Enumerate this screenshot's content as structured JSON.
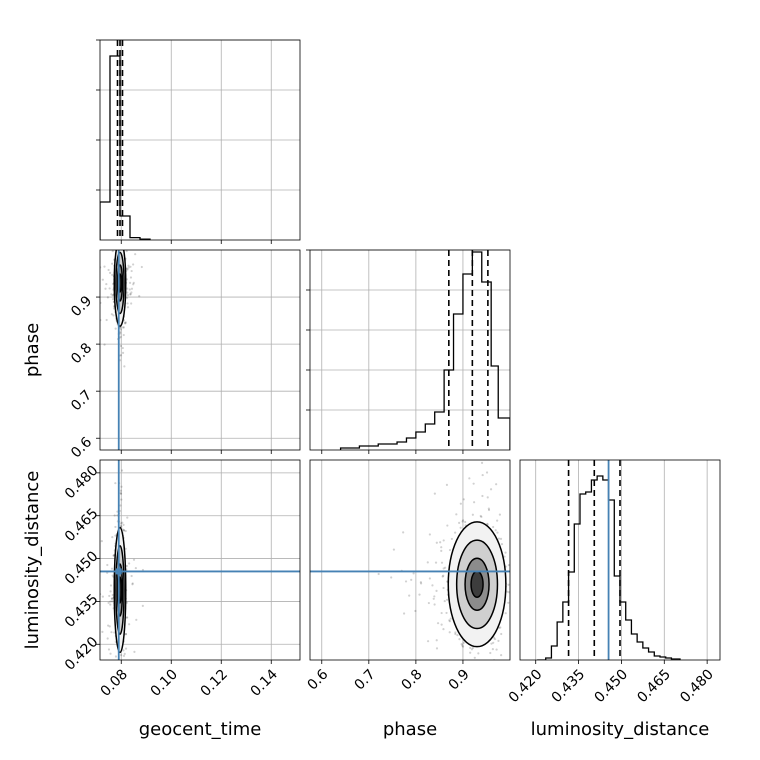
{
  "chart_data": [
    {
      "type": "histogram",
      "panel": "geocent_time-hist",
      "xlim": [
        0.0715,
        0.1515
      ],
      "ylim": [
        0,
        1.0
      ],
      "xticks": [
        0.08,
        0.1,
        0.12,
        0.14
      ],
      "yticks_unlabeled": [
        0.25,
        0.5,
        0.75,
        1.0
      ],
      "bins": [
        0.0715,
        0.0755,
        0.0795,
        0.0835,
        0.0875,
        0.0915
      ],
      "counts": [
        0.19,
        0.92,
        0.12,
        0.012,
        0.004
      ],
      "quantiles": [
        0.0785,
        0.0795,
        0.0805
      ],
      "grid": true
    },
    {
      "type": "scatter-contour",
      "panel": "geocent_time-vs-phase",
      "xlim": [
        0.0715,
        0.1515
      ],
      "ylim": [
        0.575,
        1.0
      ],
      "xticks": [
        0.08,
        0.1,
        0.12,
        0.14
      ],
      "yticks": [
        0.6,
        0.7,
        0.8,
        0.9
      ],
      "ylabel": "phase",
      "truth": {
        "x": 0.079
      },
      "peak": {
        "x": 0.0795,
        "y": 0.93
      },
      "grid": true
    },
    {
      "type": "histogram",
      "panel": "phase-hist",
      "xlim": [
        0.575,
        1.0
      ],
      "ylim": [
        0,
        1.0
      ],
      "xticks": [
        0.6,
        0.7,
        0.8,
        0.9
      ],
      "yticks_unlabeled": [
        0.2,
        0.4,
        0.6,
        0.8,
        1.0
      ],
      "bins": [
        0.64,
        0.68,
        0.72,
        0.76,
        0.78,
        0.8,
        0.82,
        0.84,
        0.86,
        0.88,
        0.9,
        0.92,
        0.94,
        0.96,
        0.975,
        1.0
      ],
      "counts": [
        0.01,
        0.02,
        0.03,
        0.04,
        0.06,
        0.09,
        0.13,
        0.19,
        0.4,
        0.68,
        0.88,
        0.99,
        0.84,
        0.42,
        0.16
      ],
      "quantiles": [
        0.87,
        0.92,
        0.953
      ],
      "grid": true
    },
    {
      "type": "scatter-contour",
      "panel": "geocent_time-vs-luminosity_distance",
      "xlim": [
        0.0715,
        0.1515
      ],
      "ylim": [
        0.4145,
        0.4845
      ],
      "xticks": [
        0.08,
        0.1,
        0.12,
        0.14
      ],
      "xtick_labels": [
        "0.08",
        "0.10",
        "0.12",
        "0.14"
      ],
      "yticks": [
        0.42,
        0.435,
        0.45,
        0.465,
        0.48
      ],
      "ytick_labels": [
        "0.420",
        "0.435",
        "0.450",
        "0.465",
        "0.480"
      ],
      "xlabel": "geocent_time",
      "ylabel": "luminosity_distance",
      "truth": {
        "x": 0.079,
        "y": 0.4455
      },
      "peak": {
        "x": 0.0795,
        "y": 0.439
      },
      "grid": true
    },
    {
      "type": "scatter-contour",
      "panel": "phase-vs-luminosity_distance",
      "xlim": [
        0.575,
        1.0
      ],
      "ylim": [
        0.4145,
        0.4845
      ],
      "xticks": [
        0.6,
        0.7,
        0.8,
        0.9
      ],
      "xtick_labels": [
        "0.6",
        "0.7",
        "0.8",
        "0.9"
      ],
      "xlabel": "phase",
      "truth": {
        "y": 0.4455
      },
      "peak": {
        "x": 0.93,
        "y": 0.441
      },
      "grid": true
    },
    {
      "type": "histogram",
      "panel": "luminosity_distance-hist",
      "xlim": [
        0.4145,
        0.4845
      ],
      "ylim": [
        0,
        1.0
      ],
      "xticks": [
        0.42,
        0.435,
        0.45,
        0.465,
        0.48
      ],
      "xtick_labels": [
        "0.420",
        "0.435",
        "0.450",
        "0.465",
        "0.480"
      ],
      "xlabel": "luminosity_distance",
      "bins": [
        0.4205,
        0.4235,
        0.4255,
        0.4275,
        0.4295,
        0.4315,
        0.4335,
        0.4355,
        0.4375,
        0.4395,
        0.4415,
        0.4435,
        0.4455,
        0.4475,
        0.4495,
        0.4515,
        0.4535,
        0.4555,
        0.4575,
        0.4595,
        0.4615,
        0.4635,
        0.4655,
        0.4675,
        0.4705
      ],
      "counts": [
        0.0,
        0.01,
        0.07,
        0.19,
        0.29,
        0.44,
        0.68,
        0.83,
        0.84,
        0.9,
        0.92,
        0.9,
        0.8,
        0.42,
        0.29,
        0.2,
        0.13,
        0.09,
        0.06,
        0.04,
        0.02,
        0.015,
        0.01,
        0.005
      ],
      "quantiles": [
        0.4315,
        0.4405,
        0.4495
      ],
      "truth": {
        "x": 0.4455
      },
      "grid": true
    }
  ],
  "colors": {
    "truth": "#4682b4",
    "hist": "#000000",
    "grid": "#b0b0b0",
    "points": "#000000"
  }
}
